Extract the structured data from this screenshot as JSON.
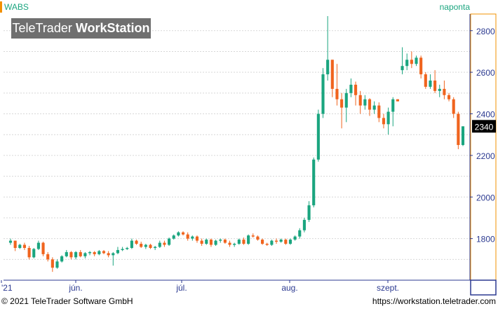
{
  "header": {
    "symbol": "WABS",
    "interval": "naponta"
  },
  "logo": {
    "brand_light": "TeleTrader ",
    "brand_bold": "WorkStation"
  },
  "footer": {
    "copyright": "© 2021 TeleTrader Software GmbH",
    "url": "https://workstation.teletrader.com"
  },
  "colors": {
    "up": "#1aa57f",
    "down": "#f0641e",
    "accent": "#f29000",
    "axis": "#2b3990"
  },
  "chart_data": {
    "type": "candlestick",
    "title": "",
    "xlabel": "",
    "ylabel": "",
    "ylim": [
      1600,
      2880
    ],
    "y_ticks": [
      1800,
      2000,
      2200,
      2400,
      2600,
      2800
    ],
    "x_tick_labels": [
      "'21",
      "jún.",
      "júl.",
      "aug.",
      "szept."
    ],
    "grid": true,
    "last_price": "2340",
    "series": [
      {
        "values": [
          [
            1780,
            1800,
            1770,
            1790
          ],
          [
            1790,
            1790,
            1740,
            1755
          ],
          [
            1755,
            1775,
            1750,
            1770
          ],
          [
            1770,
            1780,
            1745,
            1755
          ],
          [
            1755,
            1765,
            1700,
            1710
          ],
          [
            1710,
            1755,
            1705,
            1750
          ],
          [
            1750,
            1790,
            1745,
            1780
          ],
          [
            1780,
            1785,
            1715,
            1725
          ],
          [
            1725,
            1735,
            1690,
            1700
          ],
          [
            1700,
            1710,
            1640,
            1660
          ],
          [
            1660,
            1700,
            1655,
            1690
          ],
          [
            1690,
            1720,
            1685,
            1715
          ],
          [
            1715,
            1745,
            1710,
            1735
          ],
          [
            1735,
            1740,
            1700,
            1710
          ],
          [
            1710,
            1740,
            1700,
            1735
          ],
          [
            1735,
            1745,
            1710,
            1715
          ],
          [
            1715,
            1735,
            1705,
            1730
          ],
          [
            1730,
            1740,
            1720,
            1735
          ],
          [
            1735,
            1740,
            1715,
            1725
          ],
          [
            1725,
            1745,
            1720,
            1740
          ],
          [
            1740,
            1745,
            1725,
            1730
          ],
          [
            1730,
            1740,
            1710,
            1720
          ],
          [
            1720,
            1735,
            1670,
            1730
          ],
          [
            1730,
            1760,
            1725,
            1745
          ],
          [
            1745,
            1760,
            1740,
            1750
          ],
          [
            1750,
            1760,
            1745,
            1755
          ],
          [
            1755,
            1800,
            1750,
            1790
          ],
          [
            1790,
            1795,
            1770,
            1775
          ],
          [
            1775,
            1785,
            1755,
            1760
          ],
          [
            1760,
            1775,
            1750,
            1770
          ],
          [
            1770,
            1775,
            1750,
            1755
          ],
          [
            1755,
            1765,
            1745,
            1760
          ],
          [
            1760,
            1790,
            1755,
            1780
          ],
          [
            1780,
            1790,
            1760,
            1770
          ],
          [
            1770,
            1805,
            1765,
            1800
          ],
          [
            1800,
            1820,
            1795,
            1815
          ],
          [
            1815,
            1835,
            1810,
            1830
          ],
          [
            1830,
            1835,
            1815,
            1820
          ],
          [
            1820,
            1830,
            1790,
            1800
          ],
          [
            1800,
            1815,
            1790,
            1810
          ],
          [
            1810,
            1815,
            1780,
            1790
          ],
          [
            1790,
            1800,
            1765,
            1775
          ],
          [
            1775,
            1800,
            1770,
            1795
          ],
          [
            1795,
            1800,
            1760,
            1770
          ],
          [
            1770,
            1795,
            1765,
            1790
          ],
          [
            1790,
            1800,
            1780,
            1795
          ],
          [
            1795,
            1800,
            1775,
            1780
          ],
          [
            1780,
            1790,
            1760,
            1770
          ],
          [
            1770,
            1780,
            1760,
            1775
          ],
          [
            1775,
            1800,
            1770,
            1795
          ],
          [
            1795,
            1805,
            1770,
            1775
          ],
          [
            1775,
            1820,
            1770,
            1815
          ],
          [
            1815,
            1825,
            1805,
            1810
          ],
          [
            1810,
            1815,
            1790,
            1795
          ],
          [
            1795,
            1800,
            1770,
            1775
          ],
          [
            1775,
            1780,
            1765,
            1770
          ],
          [
            1770,
            1795,
            1765,
            1790
          ],
          [
            1790,
            1800,
            1775,
            1785
          ],
          [
            1785,
            1800,
            1780,
            1795
          ],
          [
            1795,
            1800,
            1770,
            1775
          ],
          [
            1775,
            1800,
            1770,
            1795
          ],
          [
            1795,
            1815,
            1790,
            1810
          ],
          [
            1810,
            1850,
            1800,
            1840
          ],
          [
            1840,
            1900,
            1830,
            1890
          ],
          [
            1890,
            1980,
            1880,
            1960
          ],
          [
            1960,
            2190,
            1950,
            2180
          ],
          [
            2180,
            2420,
            2170,
            2400
          ],
          [
            2400,
            2620,
            2380,
            2590
          ],
          [
            2590,
            2870,
            2560,
            2660
          ],
          [
            2660,
            2660,
            2480,
            2520
          ],
          [
            2520,
            2640,
            2440,
            2470
          ],
          [
            2470,
            2500,
            2330,
            2430
          ],
          [
            2430,
            2520,
            2360,
            2500
          ],
          [
            2500,
            2570,
            2480,
            2540
          ],
          [
            2540,
            2555,
            2440,
            2490
          ],
          [
            2490,
            2510,
            2400,
            2440
          ],
          [
            2440,
            2490,
            2420,
            2470
          ],
          [
            2470,
            2475,
            2390,
            2420
          ],
          [
            2420,
            2460,
            2400,
            2440
          ],
          [
            2440,
            2455,
            2360,
            2380
          ],
          [
            2380,
            2400,
            2330,
            2350
          ],
          [
            2350,
            2430,
            2300,
            2410
          ],
          [
            2410,
            2480,
            2340,
            2470
          ],
          [
            2470,
            2470,
            2460,
            2460
          ],
          [
            2610,
            2720,
            2590,
            2630
          ],
          [
            2630,
            2690,
            2610,
            2660
          ],
          [
            2660,
            2700,
            2620,
            2640
          ],
          [
            2640,
            2680,
            2630,
            2670
          ],
          [
            2670,
            2680,
            2570,
            2590
          ],
          [
            2590,
            2600,
            2520,
            2530
          ],
          [
            2530,
            2590,
            2520,
            2560
          ],
          [
            2560,
            2610,
            2500,
            2510
          ],
          [
            2510,
            2540,
            2480,
            2520
          ],
          [
            2520,
            2560,
            2470,
            2490
          ],
          [
            2490,
            2500,
            2460,
            2470
          ],
          [
            2470,
            2480,
            2380,
            2400
          ],
          [
            2400,
            2410,
            2230,
            2250
          ],
          [
            2250,
            2340,
            2245,
            2340
          ]
        ]
      }
    ]
  }
}
